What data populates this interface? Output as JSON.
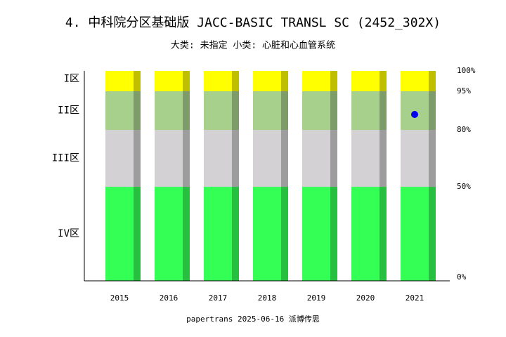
{
  "chart_data": {
    "type": "stacked-bar",
    "title": "4. 中科院分区基础版 JACC-BASIC TRANSL SC (2452_302X)",
    "subtitle": "大类: 未指定 小类: 心脏和心血管系统",
    "footer": "papertrans 2025-06-16 派博传思",
    "categories": [
      "2015",
      "2016",
      "2017",
      "2018",
      "2019",
      "2020",
      "2021"
    ],
    "series": [
      {
        "name": "IV区",
        "color": "#33ff55",
        "values": [
          50,
          50,
          50,
          50,
          50,
          50,
          50
        ]
      },
      {
        "name": "III区",
        "color": "#d3d1d3",
        "values": [
          30,
          30,
          30,
          30,
          30,
          30,
          30
        ]
      },
      {
        "name": "II区",
        "color": "#a8d08d",
        "values": [
          15,
          15,
          15,
          15,
          15,
          15,
          15
        ]
      },
      {
        "name": "I区",
        "color": "#ffff00",
        "values": [
          5,
          5,
          5,
          5,
          5,
          5,
          5
        ]
      }
    ],
    "marker": {
      "color": "#0000ee",
      "values": [
        null,
        null,
        null,
        null,
        null,
        null,
        86
      ]
    },
    "ylim": [
      0,
      100
    ],
    "yticks": [
      {
        "value": 0,
        "label": "0%"
      },
      {
        "value": 50,
        "label": "50%"
      },
      {
        "value": 80,
        "label": "80%"
      },
      {
        "value": 95,
        "label": "95%"
      },
      {
        "value": 100,
        "label": "100%"
      }
    ],
    "yscale": "piecewise"
  }
}
